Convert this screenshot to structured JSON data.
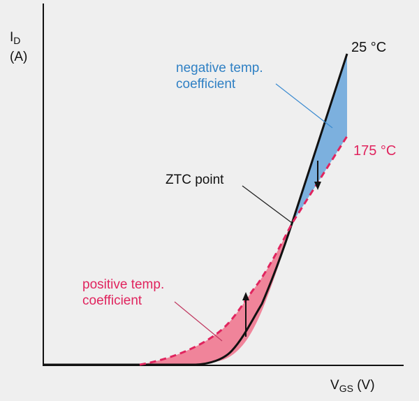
{
  "y_axis": {
    "symbol": "I",
    "subscript": "D",
    "unit": "(A)"
  },
  "x_axis": {
    "symbol": "V",
    "subscript": "GS",
    "unit": "(V)"
  },
  "curves": [
    {
      "name": "25 °C",
      "style": "solid",
      "color": "#111111"
    },
    {
      "name": "175 °C",
      "style": "dashed",
      "color": "#e0245e"
    }
  ],
  "annotations": {
    "negative": {
      "line1": "negative temp.",
      "line2": "coefficient",
      "color": "#2f80c4"
    },
    "positive": {
      "line1": "positive temp.",
      "line2": "coefficient",
      "color": "#e0245e"
    },
    "ztc": "ZTC point"
  },
  "colors": {
    "blue_fill": "#6fa8dc",
    "red_fill": "#f07890",
    "background": "#efefef"
  }
}
